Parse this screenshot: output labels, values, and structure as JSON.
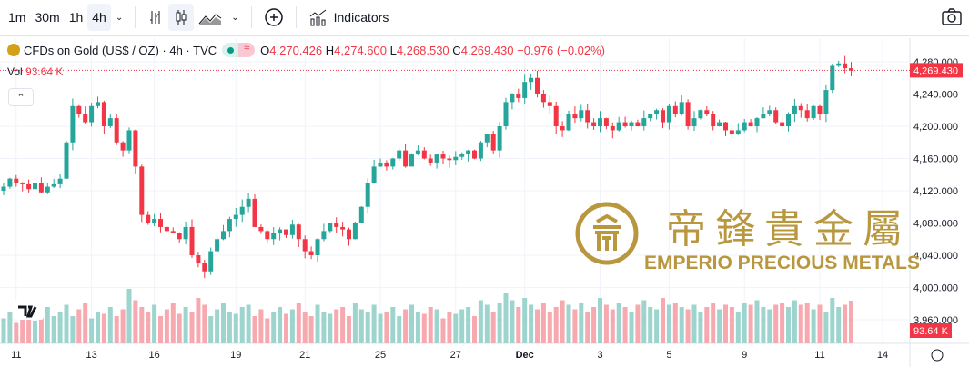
{
  "toolbar": {
    "intervals": [
      "1m",
      "30m",
      "1h",
      "4h"
    ],
    "active_interval": "4h",
    "indicators_label": "Indicators"
  },
  "legend": {
    "symbol": "CFDs on Gold (US$ / OZ) · 4h · TVC",
    "o_label": "O",
    "o": "4,270.426",
    "h_label": "H",
    "h": "4,274.600",
    "l_label": "L",
    "l": "4,268.530",
    "c_label": "C",
    "c": "4,269.430",
    "change": "−0.976 (−0.02%)",
    "vol_label": "Vol",
    "vol": "93.64 K"
  },
  "watermark": {
    "chinese": "帝鋒貴金屬",
    "english": "EMPERIO PRECIOUS METALS"
  },
  "colors": {
    "up": "#26a69a",
    "down": "#f23645",
    "up_vol": "#9dd5ce",
    "down_vol": "#f7a9b0",
    "gold": "#b8973f"
  },
  "chart_data": {
    "type": "candlestick",
    "title": "CFDs on Gold (US$ / OZ) · 4h · TVC",
    "ylim": [
      3950,
      4290
    ],
    "y_ticks": [
      "4,280.000",
      "4,240.000",
      "4,200.000",
      "4,160.000",
      "4,120.000",
      "4,080.000",
      "4,040.000",
      "4,000.000",
      "3,960.000"
    ],
    "y_tick_values": [
      4280,
      4240,
      4200,
      4160,
      4120,
      4080,
      4040,
      4000,
      3960
    ],
    "x_ticks": [
      "11",
      "13",
      "16",
      "19",
      "21",
      "25",
      "27",
      "Dec",
      "3",
      "5",
      "9",
      "11",
      "14"
    ],
    "x_tick_index": [
      2,
      14,
      24,
      37,
      48,
      60,
      72,
      83,
      95,
      106,
      118,
      130,
      140
    ],
    "last_price": "4,269.430",
    "last_volume": "93.64 K",
    "closes": [
      4125,
      4135,
      4130,
      4128,
      4122,
      4130,
      4118,
      4125,
      4128,
      4135,
      4180,
      4225,
      4215,
      4205,
      4225,
      4230,
      4200,
      4210,
      4180,
      4170,
      4195,
      4150,
      4090,
      4080,
      4085,
      4075,
      4070,
      4068,
      4060,
      4075,
      4040,
      4030,
      4020,
      4045,
      4060,
      4070,
      4085,
      4090,
      4100,
      4110,
      4075,
      4070,
      4060,
      4068,
      4072,
      4065,
      4078,
      4060,
      4045,
      4040,
      4060,
      4070,
      4080,
      4075,
      4072,
      4060,
      4080,
      4100,
      4130,
      4150,
      4155,
      4150,
      4160,
      4170,
      4150,
      4165,
      4170,
      4160,
      4155,
      4165,
      4160,
      4158,
      4162,
      4165,
      4170,
      4160,
      4180,
      4190,
      4170,
      4200,
      4230,
      4240,
      4235,
      4255,
      4260,
      4240,
      4230,
      4225,
      4200,
      4195,
      4215,
      4210,
      4220,
      4205,
      4200,
      4210,
      4200,
      4195,
      4205,
      4200,
      4205,
      4200,
      4210,
      4215,
      4220,
      4205,
      4225,
      4215,
      4230,
      4200,
      4210,
      4220,
      4215,
      4200,
      4205,
      4195,
      4190,
      4195,
      4205,
      4200,
      4210,
      4215,
      4220,
      4205,
      4200,
      4215,
      4225,
      4220,
      4210,
      4225,
      4215,
      4245,
      4275,
      4278,
      4272,
      4269
    ],
    "volumes": [
      55,
      70,
      45,
      60,
      75,
      50,
      65,
      80,
      60,
      70,
      85,
      60,
      75,
      90,
      55,
      70,
      65,
      80,
      60,
      75,
      120,
      95,
      80,
      70,
      85,
      60,
      75,
      90,
      65,
      80,
      70,
      100,
      85,
      60,
      75,
      90,
      70,
      65,
      80,
      85,
      60,
      75,
      55,
      70,
      80,
      65,
      75,
      90,
      70,
      60,
      85,
      70,
      65,
      75,
      80,
      60,
      90,
      75,
      70,
      85,
      65,
      70,
      80,
      60,
      75,
      85,
      70,
      65,
      80,
      75,
      55,
      70,
      65,
      75,
      80,
      60,
      95,
      85,
      70,
      90,
      110,
      95,
      80,
      100,
      85,
      75,
      90,
      70,
      80,
      95,
      85,
      75,
      90,
      70,
      80,
      100,
      85,
      75,
      90,
      80,
      70,
      85,
      95,
      80,
      75,
      100,
      85,
      90,
      80,
      75,
      85,
      70,
      80,
      90,
      75,
      85,
      80,
      70,
      90,
      85,
      95,
      80,
      75,
      85,
      90,
      80,
      95,
      85,
      90,
      75,
      85,
      70,
      100,
      80,
      85,
      94
    ]
  }
}
